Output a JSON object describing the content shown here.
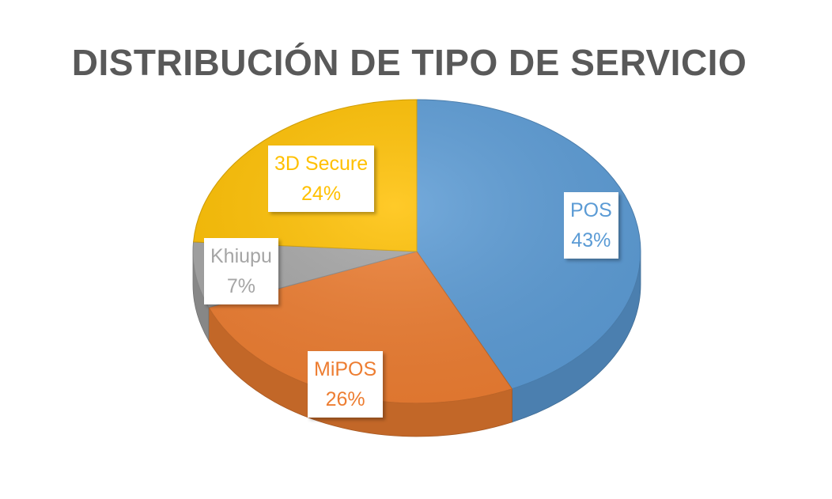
{
  "chart_data": {
    "type": "pie",
    "title": "DISTRIBUCIÓN DE TIPO DE SERVICIO",
    "slices": [
      {
        "label": "POS",
        "value": 43,
        "value_label": "43%",
        "color": "#5b9bd5"
      },
      {
        "label": "MiPOS",
        "value": 26,
        "value_label": "26%",
        "color": "#ed7d31"
      },
      {
        "label": "Khiupu",
        "value": 7,
        "value_label": "7%",
        "color": "#a5a5a5"
      },
      {
        "label": "3D Secure",
        "value": 24,
        "value_label": "24%",
        "color": "#ffc000"
      }
    ],
    "legend": "none",
    "style": "3d"
  }
}
